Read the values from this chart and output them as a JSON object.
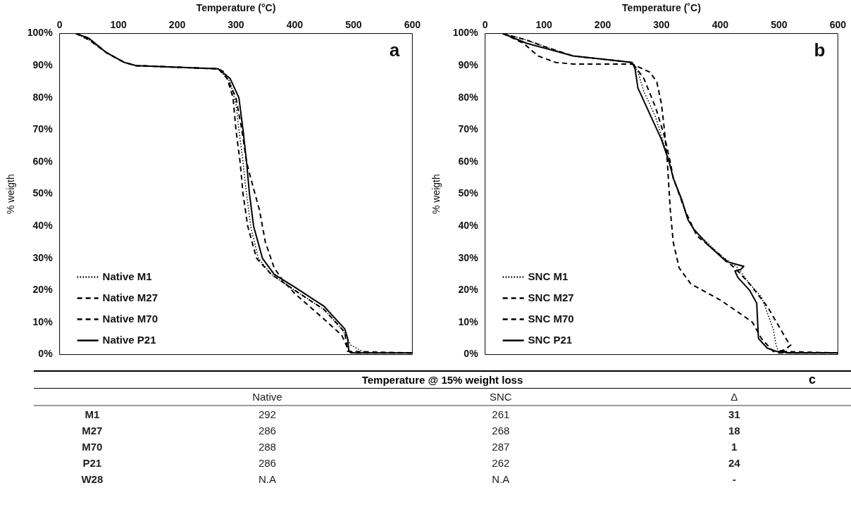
{
  "chart_data": [
    {
      "type": "line",
      "xlabel": "Temperature (°C)",
      "ylabel": "% weigth",
      "annotations": [
        "a"
      ],
      "legend": "bottom left",
      "grid": false,
      "marker": "none",
      "xlim": [
        0,
        600
      ],
      "xticks": [
        0,
        100,
        200,
        300,
        400,
        500,
        600
      ],
      "ylim": [
        0,
        100
      ],
      "yticks": [
        {
          "value": 0,
          "label": "0%"
        },
        {
          "value": 10,
          "label": "10%"
        },
        {
          "value": 20,
          "label": "20%"
        },
        {
          "value": 30,
          "label": "30%"
        },
        {
          "value": 40,
          "label": "40%"
        },
        {
          "value": 50,
          "label": "50%"
        },
        {
          "value": 60,
          "label": "60%"
        },
        {
          "value": 70,
          "label": "70%"
        },
        {
          "value": 80,
          "label": "80%"
        },
        {
          "value": 90,
          "label": "90%"
        },
        {
          "value": 100,
          "label": "100%"
        }
      ],
      "series": [
        {
          "name": "Native M1",
          "color": "#000000",
          "line_style": "dotted",
          "x": [
            28,
            50,
            80,
            110,
            130,
            200,
            270,
            290,
            300,
            305,
            312,
            318,
            325,
            338,
            360,
            400,
            450,
            480,
            490,
            495,
            505,
            520,
            600
          ],
          "values": [
            100,
            98,
            94,
            91,
            90,
            89.5,
            89,
            85,
            78,
            70,
            60,
            50,
            40,
            30,
            25,
            20,
            14,
            8,
            5,
            3,
            2,
            0.5,
            0.5
          ]
        },
        {
          "name": "Native M27",
          "color": "#000000",
          "line_style": "dashed",
          "x": [
            28,
            50,
            80,
            110,
            130,
            200,
            270,
            280,
            300,
            310,
            318,
            325,
            340,
            350,
            365,
            380,
            400,
            450,
            480,
            490,
            495,
            600
          ],
          "values": [
            100,
            98,
            94,
            91,
            90,
            89.5,
            89,
            88,
            80,
            70,
            60,
            55,
            45,
            35,
            27,
            23,
            19,
            11,
            6,
            2,
            0.5,
            0.5
          ]
        },
        {
          "name": "Native M70",
          "color": "#000000",
          "line_style": "dashed",
          "x": [
            28,
            50,
            80,
            110,
            130,
            200,
            270,
            285,
            295,
            300,
            307,
            312,
            320,
            335,
            360,
            400,
            450,
            485,
            490,
            600
          ],
          "values": [
            100,
            98.5,
            94,
            91,
            90,
            89.5,
            89,
            86,
            80,
            70,
            60,
            50,
            40,
            30,
            25,
            20,
            14,
            7,
            1,
            0.5
          ]
        },
        {
          "name": "Native P21",
          "color": "#000000",
          "line_style": "solid",
          "x": [
            28,
            50,
            80,
            110,
            130,
            200,
            270,
            290,
            305,
            312,
            318,
            323,
            330,
            345,
            365,
            400,
            450,
            485,
            490,
            492,
            500,
            515,
            600
          ],
          "values": [
            100,
            98.5,
            94,
            91,
            90,
            89.5,
            89,
            86,
            80,
            70,
            60,
            50,
            40,
            30,
            25,
            21,
            15,
            8,
            5,
            1,
            0.5,
            0.5,
            0.5
          ]
        }
      ]
    },
    {
      "type": "line",
      "xlabel": "Temperature (˚C)",
      "ylabel": "% weigth",
      "annotations": [
        "b"
      ],
      "legend": "bottom left",
      "grid": false,
      "marker": "none",
      "xlim": [
        0,
        600
      ],
      "xticks": [
        0,
        100,
        200,
        300,
        400,
        500,
        600
      ],
      "ylim": [
        0,
        100
      ],
      "yticks": [
        {
          "value": 0,
          "label": "0%"
        },
        {
          "value": 10,
          "label": "10%"
        },
        {
          "value": 20,
          "label": "20%"
        },
        {
          "value": 30,
          "label": "30%"
        },
        {
          "value": 40,
          "label": "40%"
        },
        {
          "value": 50,
          "label": "50%"
        },
        {
          "value": 60,
          "label": "60%"
        },
        {
          "value": 70,
          "label": "70%"
        },
        {
          "value": 80,
          "label": "80%"
        },
        {
          "value": 90,
          "label": "90%"
        },
        {
          "value": 100,
          "label": "100%"
        }
      ],
      "series": [
        {
          "name": "SNC M1",
          "color": "#000000",
          "line_style": "dotted",
          "x": [
            30,
            70,
            100,
            150,
            200,
            250,
            260,
            270,
            290,
            310,
            320,
            330,
            345,
            360,
            400,
            430,
            450,
            470,
            490,
            495,
            500,
            600
          ],
          "values": [
            100,
            98,
            96,
            93,
            92,
            91,
            88,
            82,
            74,
            62,
            55,
            50,
            42,
            38,
            31,
            27,
            22,
            18,
            8,
            3,
            0.5,
            0.5
          ]
        },
        {
          "name": "SNC M27",
          "color": "#000000",
          "line_style": "dashed",
          "x": [
            30,
            70,
            100,
            150,
            200,
            250,
            270,
            290,
            305,
            315,
            320,
            340,
            360,
            400,
            430,
            450,
            480,
            515,
            520,
            510,
            500,
            600
          ],
          "values": [
            100,
            98,
            96,
            93,
            92,
            91,
            86,
            77,
            68,
            60,
            55,
            45,
            37,
            31,
            26,
            22,
            15,
            4,
            3,
            1.5,
            1,
            0.5
          ]
        },
        {
          "name": "SNC M70",
          "color": "#000000",
          "line_style": "dashed",
          "x": [
            30,
            65,
            90,
            120,
            150,
            250,
            280,
            292,
            300,
            305,
            310,
            315,
            320,
            330,
            350,
            400,
            440,
            455,
            470,
            490,
            500,
            600
          ],
          "values": [
            100,
            97,
            93,
            91,
            90.5,
            90.5,
            88,
            85,
            78,
            70,
            60,
            45,
            35,
            27,
            22,
            17,
            12,
            10,
            5,
            1,
            0.5,
            0.5
          ]
        },
        {
          "name": "SNC P21",
          "color": "#000000",
          "line_style": "solid",
          "x": [
            30,
            70,
            100,
            150,
            200,
            250,
            255,
            260,
            280,
            300,
            313,
            320,
            335,
            345,
            355,
            380,
            410,
            430,
            440,
            435,
            425,
            430,
            450,
            462,
            465,
            480,
            495,
            520,
            600
          ],
          "values": [
            100,
            97,
            95.5,
            93,
            92,
            91,
            89,
            83,
            75,
            67,
            60,
            55,
            48,
            42,
            39,
            34,
            29,
            28,
            27.5,
            26.5,
            26,
            24,
            20,
            16,
            5,
            2,
            1,
            0.5,
            0.5
          ]
        }
      ]
    },
    {
      "type": "other",
      "title": "Temperature @ 15% weight loss",
      "annotations": [
        "c"
      ],
      "categories": [
        "Native",
        "SNC",
        "Δ"
      ],
      "y_categories": [
        "M1",
        "M27",
        "M70",
        "P21",
        "W28"
      ],
      "cell_labels": [
        [
          "292",
          "261",
          "31"
        ],
        [
          "286",
          "268",
          "18"
        ],
        [
          "288",
          "287",
          "1"
        ],
        [
          "286",
          "262",
          "24"
        ],
        [
          "N.A",
          "N.A",
          "-"
        ]
      ]
    }
  ]
}
